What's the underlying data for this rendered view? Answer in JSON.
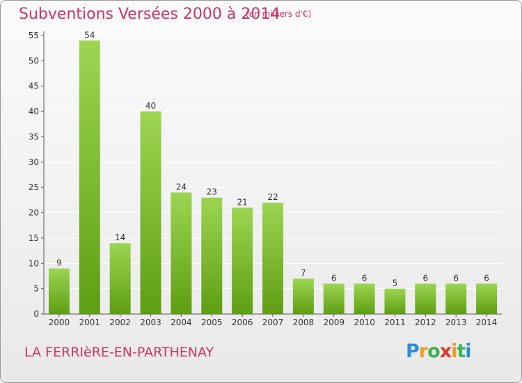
{
  "header": {
    "title": "Subventions Versées 2000 à 2014",
    "unit": "(en milliers d'€)"
  },
  "footer": {
    "commune": "LA FERRIèRE-EN-PARTHENAY",
    "logo_text": "Proxiti"
  },
  "colors": {
    "title": "#cc3366",
    "bar_light": "#9dd552",
    "bar_dark": "#5e9e12",
    "grid": "#ffffff"
  },
  "chart_data": {
    "type": "bar",
    "title": "Subventions Versées 2000 à 2014",
    "subtitle": "(en milliers d'€)",
    "categories": [
      "2000",
      "2001",
      "2002",
      "2003",
      "2004",
      "2005",
      "2006",
      "2007",
      "2008",
      "2009",
      "2010",
      "2011",
      "2012",
      "2013",
      "2014"
    ],
    "values": [
      9,
      54,
      14,
      40,
      24,
      23,
      21,
      22,
      7,
      6,
      6,
      5,
      6,
      6,
      6
    ],
    "ylim": [
      0,
      55
    ],
    "yticks": [
      0,
      5,
      10,
      15,
      20,
      25,
      30,
      35,
      40,
      45,
      50,
      55
    ],
    "grid": true,
    "xlabel": "",
    "ylabel": ""
  }
}
